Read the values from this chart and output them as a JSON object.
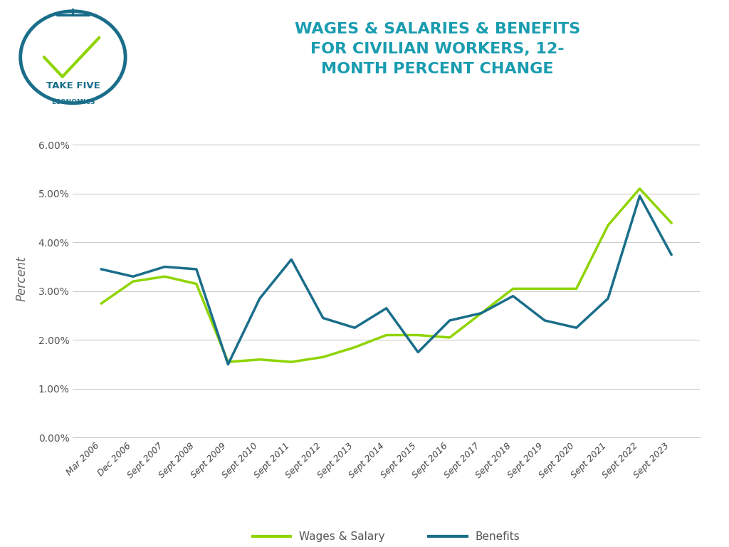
{
  "title_line1": "WAGES & SALARIES & BENEFITS",
  "title_line2": "FOR CIVILIAN WORKERS, 12-",
  "title_line3": "MONTH PERCENT CHANGE",
  "ylabel": "Percent",
  "title_color": "#1a9cb0",
  "ylabel_color": "#666666",
  "background_color": "#ffffff",
  "grid_color": "#cccccc",
  "wages_color": "#8fd400",
  "benefits_color": "#1a6e8a",
  "x_labels": [
    "Mar 2006",
    "Dec 2006",
    "Sept 2007",
    "Sept 2008",
    "Sept 2009",
    "Sept 2010",
    "Sept 2011",
    "Sept 2012",
    "Sept 2013",
    "Sept 2014",
    "Sept 2015",
    "Sept 2016",
    "Sept 2017",
    "Sept 2018",
    "Sept 2019",
    "Sept 2020",
    "Sept 2021",
    "Sept 2022",
    "Sept 2023"
  ],
  "wages_salaries": [
    2.75,
    3.2,
    3.3,
    3.15,
    1.55,
    1.6,
    1.55,
    1.65,
    1.85,
    2.1,
    2.1,
    2.05,
    2.55,
    3.05,
    3.05,
    3.05,
    4.35,
    5.1,
    4.4
  ],
  "benefits": [
    3.45,
    3.3,
    3.5,
    3.45,
    1.5,
    2.85,
    3.65,
    2.45,
    2.25,
    2.65,
    1.75,
    2.4,
    2.55,
    2.9,
    2.4,
    2.25,
    2.85,
    4.95,
    3.75
  ],
  "ylim": [
    0.0,
    6.5
  ],
  "yticks": [
    0.0,
    1.0,
    2.0,
    3.0,
    4.0,
    5.0,
    6.0
  ],
  "legend_labels": [
    "Wages & Salary",
    "Benefits"
  ],
  "logo_outer_color": "#1a6e8a",
  "logo_check_color": "#8fd400",
  "logo_text_color": "#1a6e8a"
}
